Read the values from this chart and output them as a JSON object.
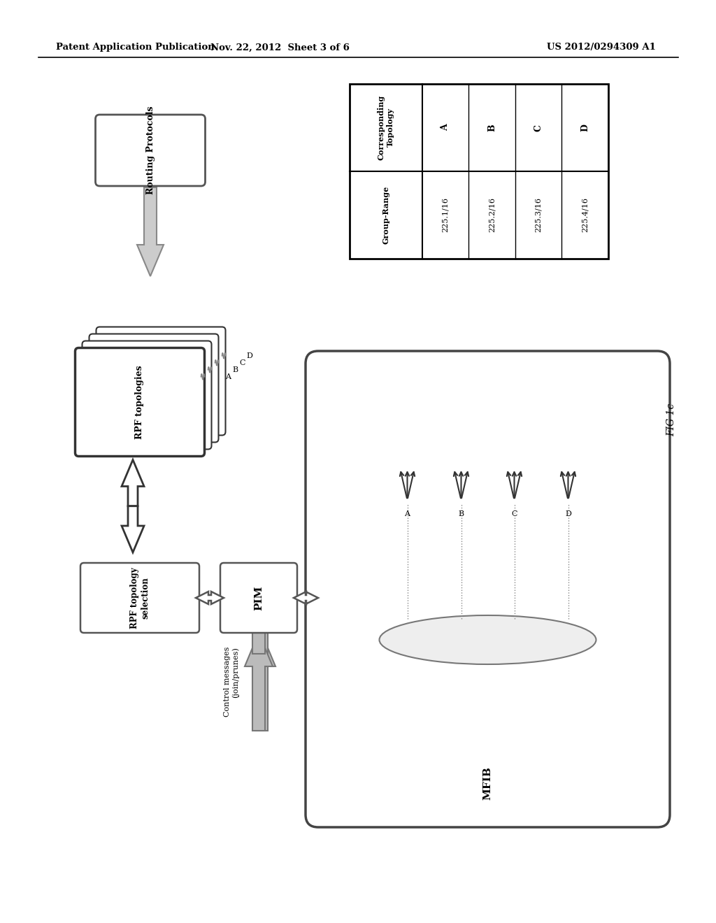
{
  "header_left": "Patent Application Publication",
  "header_mid": "Nov. 22, 2012  Sheet 3 of 6",
  "header_right": "US 2012/0294309 A1",
  "fig_label": "FIG 1c",
  "table": {
    "col1_header": "Group-Range",
    "col2_header": "Corresponding\nTopology",
    "rows": [
      [
        "225.1/16",
        "A"
      ],
      [
        "225.2/16",
        "B"
      ],
      [
        "225.3/16",
        "C"
      ],
      [
        "225.4/16",
        "D"
      ]
    ]
  },
  "boxes": {
    "routing_protocols": "Routing Protocols",
    "rpf_topologies": "RPF topologies",
    "rpf_selection": "RPF topology\nselection",
    "pim": "PIM",
    "mfib": "MFIB"
  },
  "labels": {
    "rpf_layers": [
      "D",
      "C",
      "B",
      "A"
    ],
    "mfib_trees": [
      "A",
      "B",
      "C",
      "D"
    ],
    "control_msg": "Control messages\n(join/prunes)"
  },
  "bg_color": "#ffffff",
  "line_color": "#000000",
  "gray_color": "#aaaaaa",
  "dark_color": "#333333"
}
